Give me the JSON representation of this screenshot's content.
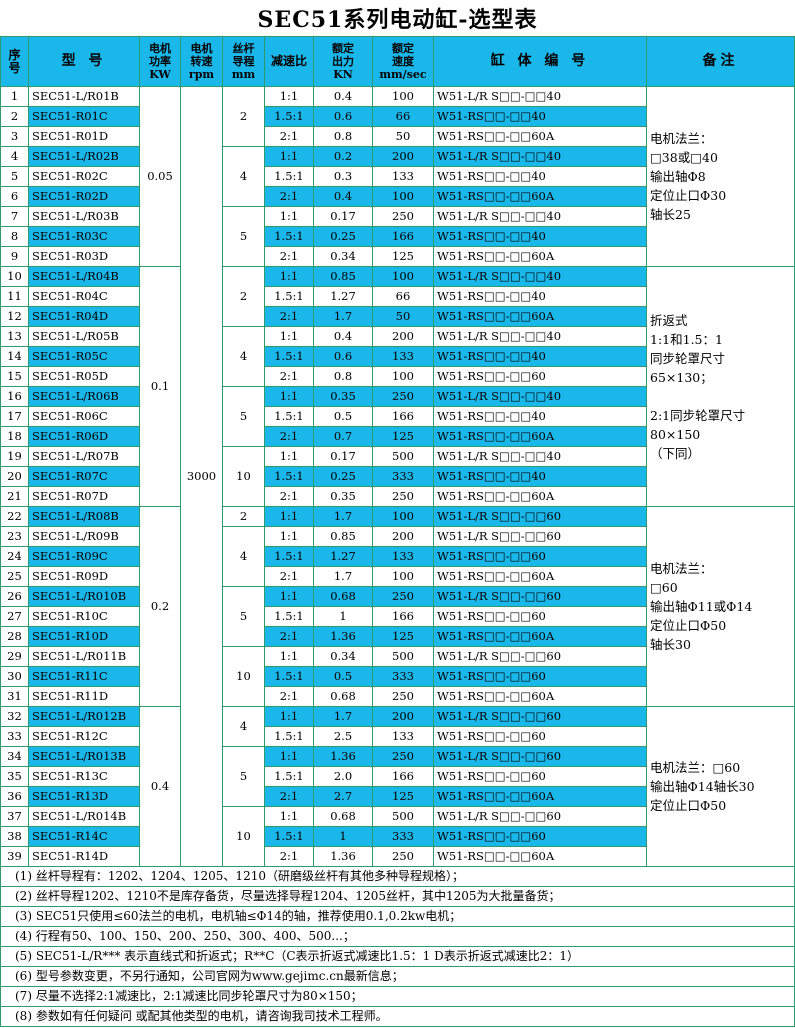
{
  "title": "SEC51系列电动缸-选型表",
  "headers": {
    "no": "序号",
    "model": "型 号",
    "power": [
      "电机",
      "功率",
      "KW"
    ],
    "speed": [
      "电机",
      "转速",
      "rpm"
    ],
    "lead": [
      "丝杆",
      "导程",
      "mm"
    ],
    "ratio": "减速比",
    "force": [
      "额定",
      "出力",
      "KN"
    ],
    "velocity": [
      "额定",
      "速度",
      "mm/sec"
    ],
    "code": "缸 体 编 号",
    "remark": "备注"
  },
  "rows": [
    {
      "no": "1",
      "model": "SEC51-L/R01B",
      "ratio": "1:1",
      "force": "0.4",
      "speed": "100",
      "code": "W51-L/R S□□-□□40",
      "hl": false
    },
    {
      "no": "2",
      "model": "SEC51-R01C",
      "ratio": "1.5:1",
      "force": "0.6",
      "speed": "66",
      "code": "W51-RS□□-□□40",
      "hl": true
    },
    {
      "no": "3",
      "model": "SEC51-R01D",
      "ratio": "2:1",
      "force": "0.8",
      "speed": "50",
      "code": "W51-RS□□-□□60A",
      "hl": false
    },
    {
      "no": "4",
      "model": "SEC51-L/R02B",
      "ratio": "1:1",
      "force": "0.2",
      "speed": "200",
      "code": "W51-L/R S□□-□□40",
      "hl": true
    },
    {
      "no": "5",
      "model": "SEC51-R02C",
      "ratio": "1.5:1",
      "force": "0.3",
      "speed": "133",
      "code": "W51-RS□□-□□40",
      "hl": false
    },
    {
      "no": "6",
      "model": "SEC51-R02D",
      "ratio": "2:1",
      "force": "0.4",
      "speed": "100",
      "code": "W51-RS□□-□□60A",
      "hl": true
    },
    {
      "no": "7",
      "model": "SEC51-L/R03B",
      "ratio": "1:1",
      "force": "0.17",
      "speed": "250",
      "code": "W51-L/R S□□-□□40",
      "hl": false
    },
    {
      "no": "8",
      "model": "SEC51-R03C",
      "ratio": "1.5:1",
      "force": "0.25",
      "speed": "166",
      "code": "W51-RS□□-□□40",
      "hl": true
    },
    {
      "no": "9",
      "model": "SEC51-R03D",
      "ratio": "2:1",
      "force": "0.34",
      "speed": "125",
      "code": "W51-RS□□-□□60A",
      "hl": false
    },
    {
      "no": "10",
      "model": "SEC51-L/R04B",
      "ratio": "1:1",
      "force": "0.85",
      "speed": "100",
      "code": "W51-L/R S□□-□□40",
      "hl": true
    },
    {
      "no": "11",
      "model": "SEC51-R04C",
      "ratio": "1.5:1",
      "force": "1.27",
      "speed": "66",
      "code": "W51-RS□□-□□40",
      "hl": false
    },
    {
      "no": "12",
      "model": "SEC51-R04D",
      "ratio": "2:1",
      "force": "1.7",
      "speed": "50",
      "code": "W51-RS□□-□□60A",
      "hl": true
    },
    {
      "no": "13",
      "model": "SEC51-L/R05B",
      "ratio": "1:1",
      "force": "0.4",
      "speed": "200",
      "code": "W51-L/R S□□-□□40",
      "hl": false
    },
    {
      "no": "14",
      "model": "SEC51-R05C",
      "ratio": "1.5:1",
      "force": "0.6",
      "speed": "133",
      "code": "W51-RS□□-□□40",
      "hl": true
    },
    {
      "no": "15",
      "model": "SEC51-R05D",
      "ratio": "2:1",
      "force": "0.8",
      "speed": "100",
      "code": "W51-RS□□-□□60",
      "hl": false
    },
    {
      "no": "16",
      "model": "SEC51-L/R06B",
      "ratio": "1:1",
      "force": "0.35",
      "speed": "250",
      "code": "W51-L/R S□□-□□40",
      "hl": true
    },
    {
      "no": "17",
      "model": "SEC51-R06C",
      "ratio": "1.5:1",
      "force": "0.5",
      "speed": "166",
      "code": "W51-RS□□-□□40",
      "hl": false
    },
    {
      "no": "18",
      "model": "SEC51-R06D",
      "ratio": "2:1",
      "force": "0.7",
      "speed": "125",
      "code": "W51-RS□□-□□60A",
      "hl": true
    },
    {
      "no": "19",
      "model": "SEC51-L/R07B",
      "ratio": "1:1",
      "force": "0.17",
      "speed": "500",
      "code": "W51-L/R S□□-□□40",
      "hl": false
    },
    {
      "no": "20",
      "model": "SEC51-R07C",
      "ratio": "1.5:1",
      "force": "0.25",
      "speed": "333",
      "code": "W51-RS□□-□□40",
      "hl": true
    },
    {
      "no": "21",
      "model": "SEC51-R07D",
      "ratio": "2:1",
      "force": "0.35",
      "speed": "250",
      "code": "W51-RS□□-□□60A",
      "hl": false
    },
    {
      "no": "22",
      "model": "SEC51-L/R08B",
      "ratio": "1:1",
      "force": "1.7",
      "speed": "100",
      "code": "W51-L/R S□□-□□60",
      "hl": true
    },
    {
      "no": "23",
      "model": "SEC51-L/R09B",
      "ratio": "1:1",
      "force": "0.85",
      "speed": "200",
      "code": "W51-L/R S□□-□□60",
      "hl": false
    },
    {
      "no": "24",
      "model": "SEC51-R09C",
      "ratio": "1.5:1",
      "force": "1.27",
      "speed": "133",
      "code": "W51-RS□□-□□60",
      "hl": true
    },
    {
      "no": "25",
      "model": "SEC51-R09D",
      "ratio": "2:1",
      "force": "1.7",
      "speed": "100",
      "code": "W51-RS□□-□□60A",
      "hl": false
    },
    {
      "no": "26",
      "model": "SEC51-L/R010B",
      "ratio": "1:1",
      "force": "0.68",
      "speed": "250",
      "code": "W51-L/R S□□-□□60",
      "hl": true
    },
    {
      "no": "27",
      "model": "SEC51-R10C",
      "ratio": "1.5:1",
      "force": "1",
      "speed": "166",
      "code": "W51-RS□□-□□60",
      "hl": false
    },
    {
      "no": "28",
      "model": "SEC51-R10D",
      "ratio": "2:1",
      "force": "1.36",
      "speed": "125",
      "code": "W51-RS□□-□□60A",
      "hl": true
    },
    {
      "no": "29",
      "model": "SEC51-L/R011B",
      "ratio": "1:1",
      "force": "0.34",
      "speed": "500",
      "code": "W51-L/R S□□-□□60",
      "hl": false
    },
    {
      "no": "30",
      "model": "SEC51-R11C",
      "ratio": "1.5:1",
      "force": "0.5",
      "speed": "333",
      "code": "W51-RS□□-□□60",
      "hl": true
    },
    {
      "no": "31",
      "model": "SEC51-R11D",
      "ratio": "2:1",
      "force": "0.68",
      "speed": "250",
      "code": "W51-RS□□-□□60A",
      "hl": false
    },
    {
      "no": "32",
      "model": "SEC51-L/R012B",
      "ratio": "1:1",
      "force": "1.7",
      "speed": "200",
      "code": "W51-L/R S□□-□□60",
      "hl": true
    },
    {
      "no": "33",
      "model": "SEC51-R12C",
      "ratio": "1.5:1",
      "force": "2.5",
      "speed": "133",
      "code": "W51-RS□□-□□60",
      "hl": false
    },
    {
      "no": "34",
      "model": "SEC51-L/R013B",
      "ratio": "1:1",
      "force": "1.36",
      "speed": "250",
      "code": "W51-L/R S□□-□□60",
      "hl": true
    },
    {
      "no": "35",
      "model": "SEC51-R13C",
      "ratio": "1.5:1",
      "force": "2.0",
      "speed": "166",
      "code": "W51-RS□□-□□60",
      "hl": false
    },
    {
      "no": "36",
      "model": "SEC51-R13D",
      "ratio": "2:1",
      "force": "2.7",
      "speed": "125",
      "code": "W51-RS□□-□□60A",
      "hl": true
    },
    {
      "no": "37",
      "model": "SEC51-L/R014B",
      "ratio": "1:1",
      "force": "0.68",
      "speed": "500",
      "code": "W51-L/R S□□-□□60",
      "hl": false
    },
    {
      "no": "38",
      "model": "SEC51-R14C",
      "ratio": "1.5:1",
      "force": "1",
      "speed": "333",
      "code": "W51-RS□□-□□60",
      "hl": true
    },
    {
      "no": "39",
      "model": "SEC51-R14D",
      "ratio": "2:1",
      "force": "1.36",
      "speed": "250",
      "code": "W51-RS□□-□□60A",
      "hl": false
    }
  ],
  "power_groups": [
    {
      "value": "0.05",
      "start": 0,
      "span": 9
    },
    {
      "value": "0.1",
      "start": 9,
      "span": 12
    },
    {
      "value": "0.2",
      "start": 21,
      "span": 10
    },
    {
      "value": "0.4",
      "start": 31,
      "span": 8
    }
  ],
  "motor_speed": "3000",
  "lead_groups": [
    {
      "value": "2",
      "start": 0,
      "span": 3
    },
    {
      "value": "4",
      "start": 3,
      "span": 3
    },
    {
      "value": "5",
      "start": 6,
      "span": 3
    },
    {
      "value": "2",
      "start": 9,
      "span": 3
    },
    {
      "value": "4",
      "start": 12,
      "span": 3
    },
    {
      "value": "5",
      "start": 15,
      "span": 3
    },
    {
      "value": "10",
      "start": 18,
      "span": 3
    },
    {
      "value": "2",
      "start": 21,
      "span": 1
    },
    {
      "value": "4",
      "start": 22,
      "span": 3
    },
    {
      "value": "5",
      "start": 25,
      "span": 3
    },
    {
      "value": "10",
      "start": 28,
      "span": 3
    },
    {
      "value": "4",
      "start": 31,
      "span": 2
    },
    {
      "value": "5",
      "start": 33,
      "span": 3
    },
    {
      "value": "10",
      "start": 36,
      "span": 3
    }
  ],
  "remark_groups": [
    {
      "start": 0,
      "span": 9,
      "lines": [
        "电机法兰：",
        "□38或□40",
        "输出轴Φ8",
        "定位止口Φ30",
        "轴长25"
      ]
    },
    {
      "start": 9,
      "span": 12,
      "lines": [
        "折返式",
        "1:1和1.5：1",
        "同步轮罩尺寸",
        "65×130；",
        "",
        "2:1同步轮罩尺寸",
        "80×150",
        "（下同）"
      ]
    },
    {
      "start": 21,
      "span": 10,
      "lines": [
        "电机法兰：",
        "□60",
        "输出轴Φ11或Φ14",
        "定位止口Φ50",
        "轴长30"
      ]
    },
    {
      "start": 31,
      "span": 8,
      "lines": [
        "电机法兰：□60",
        "输出轴Φ14轴长30",
        "定位止口Φ50"
      ]
    }
  ],
  "notes": [
    "(1) 丝杆导程有：1202、1204、1205、1210（研磨级丝杆有其他多种导程规格）；",
    "(2) 丝杆导程1202、1210不是库存备货，尽量选择导程1204、1205丝杆，其中1205为大批量备货；",
    "(3) SEC51只使用≤60法兰的电机，电机轴≤Φ14的轴，推荐使用0.1,0.2kw电机；",
    "(4) 行程有50、100、150、200、250、300、400、500...；",
    "(5) SEC51-L/R*** 表示直线式和折返式；R**C（C表示折返式减速比1.5：1 D表示折返式减速比2：1）",
    "(6) 型号参数变更，不另行通知，公司官网为www.gejimc.cn最新信息；",
    "(7) 尽量不选择2:1减速比，2:1减速比同步轮罩尺寸为80×150；",
    "(8) 参数如有任何疑问 或配其他类型的电机，请咨询我司技术工程师。"
  ],
  "colors": {
    "highlight": "#1ab7ea",
    "border": "#2e9b6e"
  }
}
